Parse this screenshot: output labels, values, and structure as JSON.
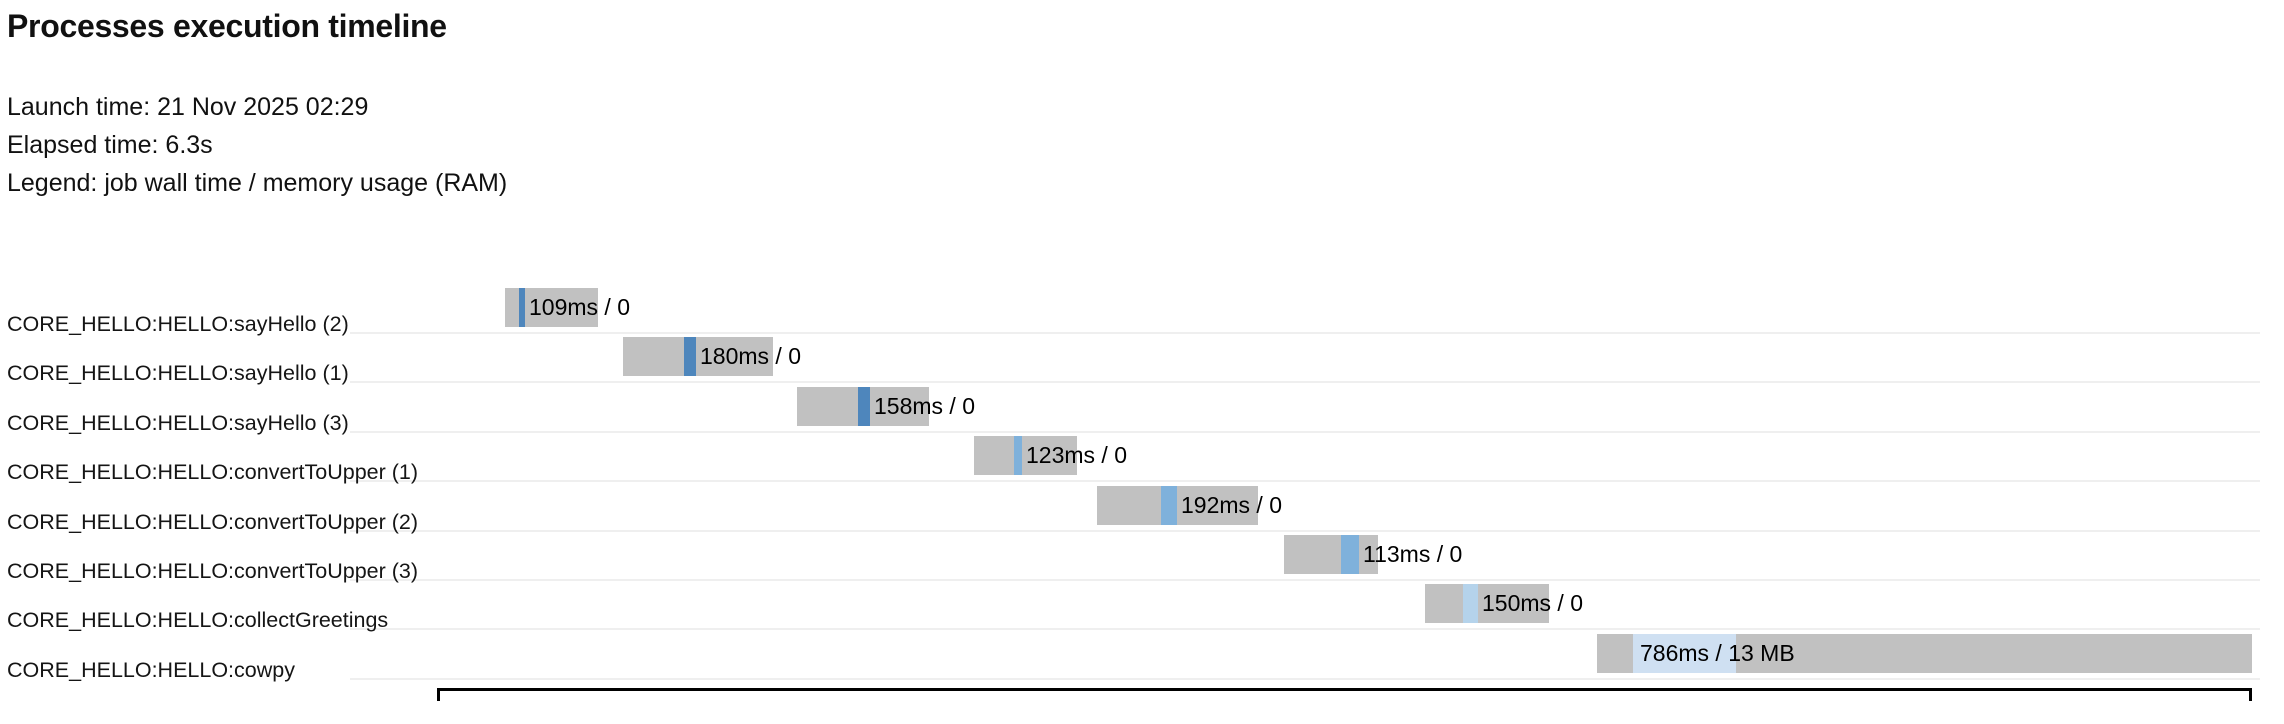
{
  "page": {
    "title": "Processes execution timeline",
    "meta": {
      "launch": "Launch time: 21 Nov 2025 02:29",
      "elapsed": "Elapsed time: 6.3s",
      "legend": "Legend: job wall time / memory usage (RAM)"
    }
  },
  "colors": {
    "pending_gray": "#c1c1c1",
    "sayHello_blue": "#4e86bc",
    "convertToUpper_blue": "#7fb1db",
    "collectGreetings_blue": "#b5d3eb",
    "cowpy_blue": "#cfe0f2",
    "axis_black": "#000000",
    "separator_gray": "#efefef"
  },
  "chart_data": {
    "type": "bar",
    "subtype": "horizontal-gantt-timeline",
    "title": "Processes execution timeline",
    "launch_time": "21 Nov 2025 02:29",
    "elapsed_time": "6.3s",
    "legend_note": "job wall time / memory usage (RAM)",
    "x_axis": {
      "unit": "seconds",
      "min": 0,
      "max": 6.3,
      "tick_labels_visible": false
    },
    "grid": "row-separator-lines",
    "tasks": [
      {
        "process": "CORE_HELLO:HELLO:sayHello (2)",
        "label": "109ms / 0",
        "wall_time": "109ms",
        "memory": "0",
        "start_s": 0.236,
        "end_s": 0.559,
        "run_start_s": 0.285,
        "run_end_s": 0.305,
        "label_at_s": 0.319,
        "color": "#4e86bc"
      },
      {
        "process": "CORE_HELLO:HELLO:sayHello (1)",
        "label": "180ms / 0",
        "wall_time": "180ms",
        "memory": "0",
        "start_s": 0.646,
        "end_s": 1.166,
        "run_start_s": 0.857,
        "run_end_s": 0.899,
        "label_at_s": 0.913,
        "color": "#4e86bc"
      },
      {
        "process": "CORE_HELLO:HELLO:sayHello (3)",
        "label": "158ms / 0",
        "wall_time": "158ms",
        "memory": "0",
        "start_s": 1.25,
        "end_s": 1.708,
        "run_start_s": 1.461,
        "run_end_s": 1.503,
        "label_at_s": 1.517,
        "color": "#4e86bc"
      },
      {
        "process": "CORE_HELLO:HELLO:convertToUpper (1)",
        "label": "123ms / 0",
        "wall_time": "123ms",
        "memory": "0",
        "start_s": 1.864,
        "end_s": 2.221,
        "run_start_s": 2.003,
        "run_end_s": 2.03,
        "label_at_s": 2.044,
        "color": "#7fb1db"
      },
      {
        "process": "CORE_HELLO:HELLO:convertToUpper (2)",
        "label": "192ms / 0",
        "wall_time": "192ms",
        "memory": "0",
        "start_s": 2.291,
        "end_s": 2.85,
        "run_start_s": 2.513,
        "run_end_s": 2.568,
        "label_at_s": 2.582,
        "color": "#7fb1db"
      },
      {
        "process": "CORE_HELLO:HELLO:convertToUpper (3)",
        "label": "113ms / 0",
        "wall_time": "113ms",
        "memory": "0",
        "start_s": 2.94,
        "end_s": 3.266,
        "run_start_s": 3.138,
        "run_end_s": 3.2,
        "label_at_s": 3.214,
        "color": "#7fb1db"
      },
      {
        "process": "CORE_HELLO:HELLO:collectGreetings",
        "label": "150ms / 0",
        "wall_time": "150ms",
        "memory": "0",
        "start_s": 3.429,
        "end_s": 3.86,
        "run_start_s": 3.561,
        "run_end_s": 3.613,
        "label_at_s": 3.627,
        "color": "#b5d3eb"
      },
      {
        "process": "CORE_HELLO:HELLO:cowpy",
        "label": "786ms / 13 MB",
        "wall_time": "786ms",
        "memory": "13 MB",
        "start_s": 4.026,
        "end_s": 6.3,
        "run_start_s": 4.151,
        "run_end_s": 4.509,
        "label_at_s": 4.175,
        "color": "#cfe0f2"
      }
    ]
  }
}
